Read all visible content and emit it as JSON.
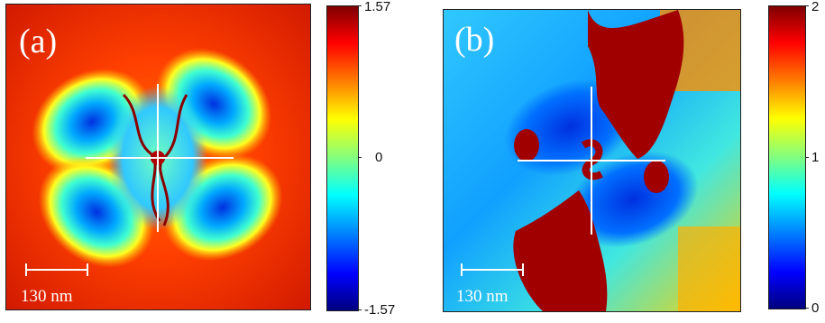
{
  "panels": {
    "a": {
      "label": "(a)",
      "scale_bar": "130 nm",
      "colorbar": {
        "max": "1.57",
        "mid": "0",
        "min": "-1.57"
      }
    },
    "b": {
      "label": "(b)",
      "scale_bar": "130 nm",
      "colorbar": {
        "max": "2",
        "mid": "1",
        "min": "0"
      }
    }
  },
  "colormap": "jet"
}
